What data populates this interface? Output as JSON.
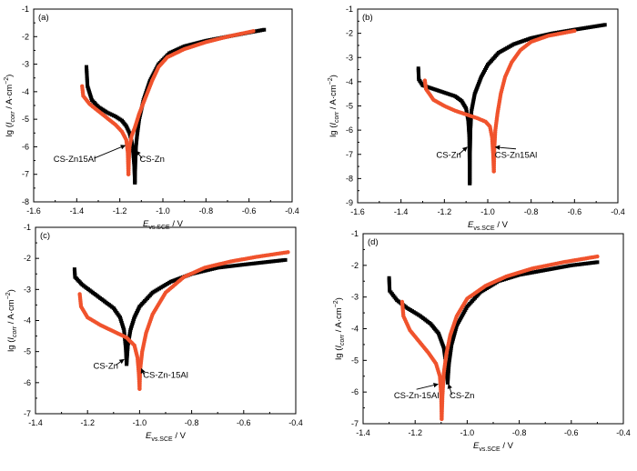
{
  "colors": {
    "zn": "#000000",
    "znal": "#f0532d"
  },
  "chart_data": [
    {
      "type": "line",
      "panel": "(a)",
      "xlabel_main": "E",
      "xlabel_sub": "vs.SCE",
      "xlabel_unit": " / V",
      "ylabel": "lg (I_corr / A·cm^-2)",
      "xlim": [
        -1.6,
        -0.4
      ],
      "ylim": [
        -8,
        -1
      ],
      "xticks": [
        -1.6,
        -1.4,
        -1.2,
        -1.0,
        -0.8,
        -0.6,
        -0.4
      ],
      "xtick_labels": [
        "-1.6",
        "-1.4",
        "-1.2",
        "-1.0",
        "-0.8",
        "-0.6",
        "-0.4"
      ],
      "yticks": [
        -8,
        -7,
        -6,
        -5,
        -4,
        -3,
        -2,
        -1
      ],
      "ytick_labels": [
        "-8",
        "-7",
        "-6",
        "-5",
        "-4",
        "-3",
        "-2",
        "-1"
      ],
      "series": [
        {
          "name": "CS-Zn",
          "color": "#000000",
          "cathodic": [
            [
              -1.355,
              -3.1
            ],
            [
              -1.35,
              -3.8
            ],
            [
              -1.33,
              -4.3
            ],
            [
              -1.3,
              -4.55
            ],
            [
              -1.26,
              -4.75
            ],
            [
              -1.22,
              -4.9
            ],
            [
              -1.19,
              -5.05
            ],
            [
              -1.17,
              -5.25
            ],
            [
              -1.155,
              -5.5
            ],
            [
              -1.145,
              -5.8
            ],
            [
              -1.138,
              -6.2
            ],
            [
              -1.133,
              -6.7
            ],
            [
              -1.13,
              -7.3
            ]
          ],
          "anodic": [
            [
              -1.13,
              -7.3
            ],
            [
              -1.128,
              -6.6
            ],
            [
              -1.125,
              -6.0
            ],
            [
              -1.12,
              -5.6
            ],
            [
              -1.11,
              -5.0
            ],
            [
              -1.09,
              -4.3
            ],
            [
              -1.06,
              -3.6
            ],
            [
              -1.02,
              -3.0
            ],
            [
              -0.97,
              -2.6
            ],
            [
              -0.9,
              -2.35
            ],
            [
              -0.8,
              -2.15
            ],
            [
              -0.7,
              -2.0
            ],
            [
              -0.6,
              -1.85
            ],
            [
              -0.53,
              -1.75
            ]
          ]
        },
        {
          "name": "CS-Zn15Al",
          "color": "#f0532d",
          "cathodic": [
            [
              -1.375,
              -3.8
            ],
            [
              -1.37,
              -4.15
            ],
            [
              -1.34,
              -4.45
            ],
            [
              -1.3,
              -4.7
            ],
            [
              -1.26,
              -4.95
            ],
            [
              -1.22,
              -5.2
            ],
            [
              -1.19,
              -5.45
            ],
            [
              -1.17,
              -5.75
            ],
            [
              -1.163,
              -6.2
            ],
            [
              -1.16,
              -7.0
            ]
          ],
          "anodic": [
            [
              -1.16,
              -7.0
            ],
            [
              -1.158,
              -6.5
            ],
            [
              -1.155,
              -6.0
            ],
            [
              -1.145,
              -5.6
            ],
            [
              -1.13,
              -5.3
            ],
            [
              -1.11,
              -4.8
            ],
            [
              -1.08,
              -4.2
            ],
            [
              -1.05,
              -3.6
            ],
            [
              -1.02,
              -3.1
            ],
            [
              -0.98,
              -2.75
            ],
            [
              -0.9,
              -2.45
            ],
            [
              -0.8,
              -2.2
            ],
            [
              -0.7,
              -2.0
            ],
            [
              -0.58,
              -1.8
            ]
          ]
        }
      ],
      "annotations": [
        {
          "text": "CS-Zn15Al",
          "x": -1.41,
          "y": -6.55,
          "ax": -1.175,
          "ay": -5.95,
          "anchor": "middle"
        },
        {
          "text": "CS-Zn",
          "x": -1.05,
          "y": -6.55,
          "ax": -1.125,
          "ay": -6.15,
          "anchor": "middle"
        }
      ]
    },
    {
      "type": "line",
      "panel": "(b)",
      "xlabel_main": "E",
      "xlabel_sub": "vs.SCE",
      "xlabel_unit": " / V",
      "ylabel": "lg (I_corr / A·cm^-2)",
      "xlim": [
        -1.6,
        -0.4
      ],
      "ylim": [
        -9,
        -1
      ],
      "xticks": [
        -1.6,
        -1.4,
        -1.2,
        -1.0,
        -0.8,
        -0.6,
        -0.4
      ],
      "xtick_labels": [
        "-1.6",
        "-1.4",
        "-1.2",
        "-1.0",
        "-0.8",
        "-0.6",
        "-0.4"
      ],
      "yticks": [
        -9,
        -8,
        -7,
        -6,
        -5,
        -4,
        -3,
        -2,
        -1
      ],
      "ytick_labels": [
        "-9",
        "-8",
        "-7",
        "-6",
        "-5",
        "-4",
        "-3",
        "-2",
        "-1"
      ],
      "series": [
        {
          "name": "CS-Zn",
          "color": "#000000",
          "cathodic": [
            [
              -1.32,
              -3.45
            ],
            [
              -1.318,
              -3.9
            ],
            [
              -1.3,
              -4.15
            ],
            [
              -1.25,
              -4.3
            ],
            [
              -1.2,
              -4.45
            ],
            [
              -1.15,
              -4.6
            ],
            [
              -1.12,
              -4.8
            ],
            [
              -1.1,
              -5.1
            ],
            [
              -1.09,
              -5.6
            ],
            [
              -1.085,
              -6.3
            ],
            [
              -1.083,
              -8.2
            ]
          ],
          "anodic": [
            [
              -1.083,
              -8.2
            ],
            [
              -1.082,
              -7.0
            ],
            [
              -1.08,
              -6.0
            ],
            [
              -1.075,
              -5.2
            ],
            [
              -1.06,
              -4.5
            ],
            [
              -1.03,
              -3.8
            ],
            [
              -1.0,
              -3.3
            ],
            [
              -0.95,
              -2.8
            ],
            [
              -0.88,
              -2.45
            ],
            [
              -0.8,
              -2.2
            ],
            [
              -0.7,
              -2.0
            ],
            [
              -0.6,
              -1.85
            ],
            [
              -0.46,
              -1.65
            ]
          ]
        },
        {
          "name": "CS-Zn15Al",
          "color": "#f0532d",
          "cathodic": [
            [
              -1.29,
              -3.95
            ],
            [
              -1.285,
              -4.3
            ],
            [
              -1.25,
              -4.75
            ],
            [
              -1.2,
              -5.0
            ],
            [
              -1.15,
              -5.2
            ],
            [
              -1.1,
              -5.35
            ],
            [
              -1.05,
              -5.5
            ],
            [
              -1.01,
              -5.65
            ],
            [
              -0.99,
              -5.85
            ],
            [
              -0.98,
              -6.3
            ],
            [
              -0.975,
              -7.0
            ],
            [
              -0.972,
              -7.7
            ]
          ],
          "anodic": [
            [
              -0.972,
              -7.7
            ],
            [
              -0.97,
              -6.8
            ],
            [
              -0.965,
              -6.0
            ],
            [
              -0.955,
              -5.3
            ],
            [
              -0.94,
              -4.5
            ],
            [
              -0.92,
              -3.8
            ],
            [
              -0.89,
              -3.2
            ],
            [
              -0.85,
              -2.7
            ],
            [
              -0.8,
              -2.35
            ],
            [
              -0.72,
              -2.1
            ],
            [
              -0.6,
              -1.9
            ]
          ]
        }
      ],
      "annotations": [
        {
          "text": "CS-Zn",
          "x": -1.18,
          "y": -7.15,
          "ax": -1.095,
          "ay": -6.7,
          "anchor": "middle"
        },
        {
          "text": "CS-Zn15Al",
          "x": -0.87,
          "y": -7.15,
          "ax": -0.965,
          "ay": -6.7,
          "anchor": "middle"
        }
      ]
    },
    {
      "type": "line",
      "panel": "(c)",
      "xlabel_main": "E",
      "xlabel_sub": "vs.SCE",
      "xlabel_unit": " / V",
      "ylabel": "lg (I_corr / A·cm^-2)",
      "xlim": [
        -1.4,
        -0.4
      ],
      "ylim": [
        -7,
        -1
      ],
      "xticks": [
        -1.4,
        -1.2,
        -1.0,
        -0.8,
        -0.6,
        -0.4
      ],
      "xtick_labels": [
        "-1.4",
        "-1.2",
        "-1.0",
        "-0.8",
        "-0.6",
        "-0.4"
      ],
      "yticks": [
        -7,
        -6,
        -5,
        -4,
        -3,
        -2,
        -1
      ],
      "ytick_labels": [
        "-7",
        "-6",
        "-5",
        "-4",
        "-3",
        "-2",
        "-1"
      ],
      "series": [
        {
          "name": "CS-Zn",
          "color": "#000000",
          "cathodic": [
            [
              -1.25,
              -2.35
            ],
            [
              -1.248,
              -2.6
            ],
            [
              -1.22,
              -2.85
            ],
            [
              -1.18,
              -3.1
            ],
            [
              -1.14,
              -3.35
            ],
            [
              -1.1,
              -3.6
            ],
            [
              -1.075,
              -3.9
            ],
            [
              -1.06,
              -4.3
            ],
            [
              -1.053,
              -4.9
            ],
            [
              -1.05,
              -5.4
            ]
          ],
          "anodic": [
            [
              -1.05,
              -5.4
            ],
            [
              -1.045,
              -4.8
            ],
            [
              -1.035,
              -4.3
            ],
            [
              -1.02,
              -3.9
            ],
            [
              -1.0,
              -3.55
            ],
            [
              -0.95,
              -3.1
            ],
            [
              -0.88,
              -2.75
            ],
            [
              -0.8,
              -2.5
            ],
            [
              -0.7,
              -2.3
            ],
            [
              -0.6,
              -2.2
            ],
            [
              -0.44,
              -2.05
            ]
          ]
        },
        {
          "name": "CS-Zn-15Al",
          "color": "#f0532d",
          "cathodic": [
            [
              -1.23,
              -3.15
            ],
            [
              -1.225,
              -3.55
            ],
            [
              -1.2,
              -3.9
            ],
            [
              -1.15,
              -4.15
            ],
            [
              -1.1,
              -4.35
            ],
            [
              -1.05,
              -4.55
            ],
            [
              -1.02,
              -4.8
            ],
            [
              -1.008,
              -5.2
            ],
            [
              -1.003,
              -5.7
            ],
            [
              -1.0,
              -6.2
            ]
          ],
          "anodic": [
            [
              -1.0,
              -6.2
            ],
            [
              -0.998,
              -5.6
            ],
            [
              -0.99,
              -5.0
            ],
            [
              -0.975,
              -4.4
            ],
            [
              -0.95,
              -3.8
            ],
            [
              -0.9,
              -3.1
            ],
            [
              -0.83,
              -2.6
            ],
            [
              -0.75,
              -2.3
            ],
            [
              -0.65,
              -2.1
            ],
            [
              -0.55,
              -1.95
            ],
            [
              -0.43,
              -1.8
            ]
          ]
        }
      ],
      "annotations": [
        {
          "text": "CS-Zn",
          "x": -1.13,
          "y": -5.55,
          "ax": -1.06,
          "ay": -5.25,
          "anchor": "middle"
        },
        {
          "text": "CS-Zn-15Al",
          "x": -0.9,
          "y": -5.85,
          "ax": -0.993,
          "ay": -5.55,
          "anchor": "middle"
        }
      ]
    },
    {
      "type": "line",
      "panel": "(d)",
      "xlabel_main": "E",
      "xlabel_sub": "vs.SCE",
      "xlabel_unit": " / V",
      "ylabel": "lg (I_corr / A·cm^-2)",
      "xlim": [
        -1.4,
        -0.4
      ],
      "ylim": [
        -7,
        -1
      ],
      "xticks": [
        -1.4,
        -1.2,
        -1.0,
        -0.8,
        -0.6,
        -0.4
      ],
      "xtick_labels": [
        "-1.4",
        "-1.2",
        "-1.0",
        "-0.8",
        "-0.6",
        "-0.4"
      ],
      "yticks": [
        -7,
        -6,
        -5,
        -4,
        -3,
        -2,
        -1
      ],
      "ytick_labels": [
        "-7",
        "-6",
        "-5",
        "-4",
        "-3",
        "-2",
        "-1"
      ],
      "series": [
        {
          "name": "CS-Zn",
          "color": "#000000",
          "cathodic": [
            [
              -1.3,
              -2.4
            ],
            [
              -1.298,
              -2.8
            ],
            [
              -1.27,
              -3.1
            ],
            [
              -1.23,
              -3.35
            ],
            [
              -1.18,
              -3.6
            ],
            [
              -1.14,
              -3.85
            ],
            [
              -1.11,
              -4.15
            ],
            [
              -1.09,
              -4.6
            ],
            [
              -1.08,
              -5.2
            ],
            [
              -1.075,
              -5.7
            ]
          ],
          "anodic": [
            [
              -1.075,
              -5.7
            ],
            [
              -1.07,
              -5.1
            ],
            [
              -1.06,
              -4.5
            ],
            [
              -1.04,
              -3.9
            ],
            [
              -1.0,
              -3.3
            ],
            [
              -0.95,
              -2.85
            ],
            [
              -0.88,
              -2.5
            ],
            [
              -0.8,
              -2.3
            ],
            [
              -0.7,
              -2.15
            ],
            [
              -0.6,
              -2.0
            ],
            [
              -0.5,
              -1.9
            ]
          ]
        },
        {
          "name": "CS-Zn-15Al",
          "color": "#f0532d",
          "cathodic": [
            [
              -1.25,
              -3.15
            ],
            [
              -1.245,
              -3.6
            ],
            [
              -1.22,
              -4.05
            ],
            [
              -1.18,
              -4.45
            ],
            [
              -1.15,
              -4.75
            ],
            [
              -1.12,
              -5.1
            ],
            [
              -1.105,
              -5.5
            ],
            [
              -1.1,
              -6.1
            ],
            [
              -1.098,
              -6.85
            ]
          ],
          "anodic": [
            [
              -1.098,
              -6.85
            ],
            [
              -1.095,
              -6.1
            ],
            [
              -1.09,
              -5.4
            ],
            [
              -1.08,
              -4.8
            ],
            [
              -1.065,
              -4.2
            ],
            [
              -1.04,
              -3.6
            ],
            [
              -1.0,
              -3.05
            ],
            [
              -0.93,
              -2.65
            ],
            [
              -0.85,
              -2.35
            ],
            [
              -0.75,
              -2.1
            ],
            [
              -0.63,
              -1.9
            ],
            [
              -0.5,
              -1.72
            ]
          ]
        }
      ],
      "annotations": [
        {
          "text": "CS-Zn-15Al",
          "x": -1.195,
          "y": -6.2,
          "ax": -1.112,
          "ay": -5.75,
          "anchor": "middle"
        },
        {
          "text": "CS-Zn",
          "x": -1.02,
          "y": -6.2,
          "ax": -1.072,
          "ay": -5.75,
          "anchor": "middle"
        }
      ]
    }
  ]
}
